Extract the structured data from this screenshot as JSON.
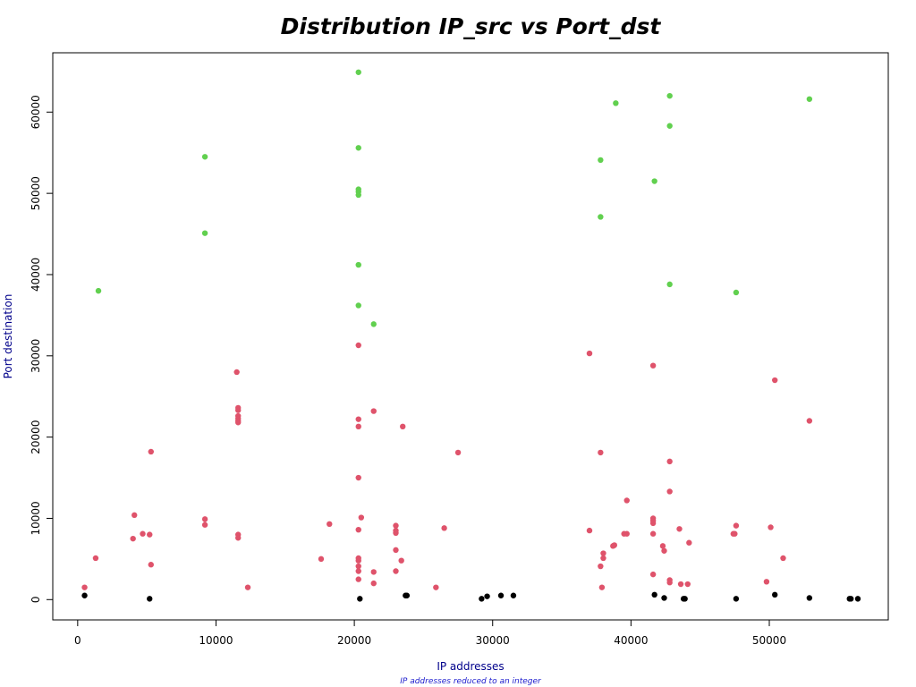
{
  "chart_data": {
    "type": "scatter",
    "title": "Distribution IP_src vs Port_dst",
    "xlabel": "IP addresses",
    "xsublabel": "IP addresses reduced to an integer",
    "ylabel": "Port destination",
    "xlim": [
      -1800,
      58600
    ],
    "ylim": [
      -2500,
      67300
    ],
    "xticks": [
      0,
      10000,
      20000,
      30000,
      40000,
      50000
    ],
    "yticks": [
      0,
      10000,
      20000,
      30000,
      40000,
      50000,
      60000
    ],
    "grid": false,
    "legend": "none",
    "series": [
      {
        "color": "#000000",
        "points": [
          [
            500,
            500
          ],
          [
            5200,
            100
          ],
          [
            20400,
            100
          ],
          [
            23700,
            500
          ],
          [
            23800,
            500
          ],
          [
            29200,
            100
          ],
          [
            29600,
            400
          ],
          [
            30600,
            500
          ],
          [
            31500,
            500
          ],
          [
            41700,
            600
          ],
          [
            42400,
            200
          ],
          [
            43800,
            100
          ],
          [
            43900,
            100
          ],
          [
            47600,
            100
          ],
          [
            50400,
            600
          ],
          [
            52900,
            200
          ],
          [
            55800,
            100
          ],
          [
            55900,
            100
          ],
          [
            56400,
            100
          ]
        ]
      },
      {
        "color": "#df536b",
        "points": [
          [
            500,
            1500
          ],
          [
            1300,
            5100
          ],
          [
            4000,
            7500
          ],
          [
            4100,
            10400
          ],
          [
            4700,
            8100
          ],
          [
            5200,
            8000
          ],
          [
            5300,
            18200
          ],
          [
            5300,
            4300
          ],
          [
            9200,
            9900
          ],
          [
            9200,
            9200
          ],
          [
            11500,
            28000
          ],
          [
            11600,
            23600
          ],
          [
            11600,
            23300
          ],
          [
            11600,
            22600
          ],
          [
            11600,
            22300
          ],
          [
            11600,
            22000
          ],
          [
            11600,
            21800
          ],
          [
            11600,
            8000
          ],
          [
            11600,
            7600
          ],
          [
            12300,
            1500
          ],
          [
            17600,
            5000
          ],
          [
            18200,
            9300
          ],
          [
            20300,
            31300
          ],
          [
            20300,
            22200
          ],
          [
            20300,
            21300
          ],
          [
            20300,
            15000
          ],
          [
            20300,
            8600
          ],
          [
            20300,
            5100
          ],
          [
            20300,
            4800
          ],
          [
            20300,
            4100
          ],
          [
            20300,
            3500
          ],
          [
            20300,
            2500
          ],
          [
            20500,
            10100
          ],
          [
            21400,
            23200
          ],
          [
            21400,
            3400
          ],
          [
            21400,
            2000
          ],
          [
            23000,
            9100
          ],
          [
            23000,
            8500
          ],
          [
            23000,
            8200
          ],
          [
            23000,
            6100
          ],
          [
            23000,
            3500
          ],
          [
            23400,
            4800
          ],
          [
            23500,
            21300
          ],
          [
            25900,
            1500
          ],
          [
            26500,
            8800
          ],
          [
            27500,
            18100
          ],
          [
            37000,
            30300
          ],
          [
            37000,
            8500
          ],
          [
            37800,
            18100
          ],
          [
            37800,
            4100
          ],
          [
            37900,
            1500
          ],
          [
            38000,
            5700
          ],
          [
            38000,
            5100
          ],
          [
            38700,
            6600
          ],
          [
            38800,
            6700
          ],
          [
            39500,
            8100
          ],
          [
            39700,
            8100
          ],
          [
            39700,
            12200
          ],
          [
            41600,
            28800
          ],
          [
            41600,
            10000
          ],
          [
            41600,
            9700
          ],
          [
            41600,
            9400
          ],
          [
            41600,
            8100
          ],
          [
            41600,
            3100
          ],
          [
            42300,
            6600
          ],
          [
            42400,
            6000
          ],
          [
            42800,
            17000
          ],
          [
            42800,
            13300
          ],
          [
            42800,
            2400
          ],
          [
            42800,
            2100
          ],
          [
            43500,
            8700
          ],
          [
            43600,
            1900
          ],
          [
            44100,
            1900
          ],
          [
            44200,
            7000
          ],
          [
            47400,
            8100
          ],
          [
            47500,
            8100
          ],
          [
            47600,
            9100
          ],
          [
            49800,
            2200
          ],
          [
            50100,
            8900
          ],
          [
            50400,
            27000
          ],
          [
            51000,
            5100
          ],
          [
            52900,
            22000
          ]
        ]
      },
      {
        "color": "#61d04f",
        "points": [
          [
            1500,
            38000
          ],
          [
            9200,
            54500
          ],
          [
            9200,
            45100
          ],
          [
            20300,
            64900
          ],
          [
            20300,
            55600
          ],
          [
            20300,
            50500
          ],
          [
            20300,
            50200
          ],
          [
            20300,
            49800
          ],
          [
            20300,
            41200
          ],
          [
            20300,
            36200
          ],
          [
            21400,
            33900
          ],
          [
            37800,
            54100
          ],
          [
            37800,
            47100
          ],
          [
            38900,
            61100
          ],
          [
            41700,
            51500
          ],
          [
            42800,
            62000
          ],
          [
            42800,
            58300
          ],
          [
            42800,
            38800
          ],
          [
            47600,
            37800
          ],
          [
            52900,
            61600
          ]
        ]
      }
    ]
  }
}
